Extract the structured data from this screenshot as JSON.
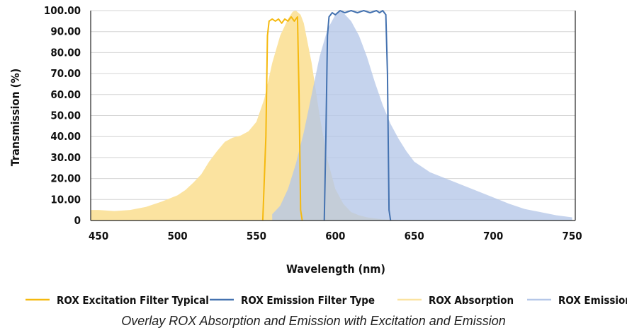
{
  "chart_data": {
    "type": "area",
    "title": "",
    "caption": "Overlay ROX Absorption and Emission with Excitation and Emission",
    "xlabel": "Wavelength (nm)",
    "ylabel": "Transmission (%)",
    "xlim": [
      445,
      752
    ],
    "ylim": [
      0,
      100
    ],
    "x_ticks": [
      450,
      500,
      550,
      600,
      650,
      700,
      750
    ],
    "x_tick_labels": [
      "450",
      "500",
      "550",
      "600",
      "650",
      "700",
      "750"
    ],
    "y_ticks": [
      0,
      10,
      20,
      30,
      40,
      50,
      60,
      70,
      80,
      90,
      100
    ],
    "y_tick_labels": [
      "0",
      "10.00",
      "20.00",
      "30.00",
      "40.00",
      "50.00",
      "60.00",
      "70.00",
      "80.00",
      "90.00",
      "100.00"
    ],
    "grid": "horizontal",
    "legend_position": "bottom",
    "series": [
      {
        "name": "ROX Absorption",
        "kind": "area",
        "color": "#fbe3a0",
        "x": [
          445,
          450,
          460,
          470,
          480,
          490,
          500,
          505,
          510,
          515,
          520,
          525,
          530,
          535,
          540,
          545,
          550,
          555,
          560,
          565,
          570,
          573,
          575,
          578,
          580,
          585,
          590,
          595,
          600,
          605,
          610,
          615,
          620,
          630,
          640,
          650
        ],
        "y": [
          5,
          5,
          4.5,
          5,
          6.5,
          9,
          12,
          14.5,
          18,
          22,
          28,
          33,
          37.5,
          39.5,
          40.5,
          42.5,
          47,
          58,
          75,
          88,
          96,
          99.5,
          100,
          98,
          94,
          75,
          50,
          29,
          15,
          8,
          4,
          2.5,
          1.5,
          0.5,
          0.2,
          0
        ]
      },
      {
        "name": "ROX Emission",
        "kind": "area",
        "color": "#b5c7e8",
        "x": [
          560,
          565,
          570,
          575,
          580,
          585,
          590,
          595,
          600,
          603,
          605,
          610,
          615,
          620,
          625,
          630,
          635,
          640,
          645,
          650,
          660,
          670,
          680,
          690,
          700,
          710,
          720,
          730,
          740,
          750
        ],
        "y": [
          3,
          7,
          15,
          27,
          42,
          60,
          78,
          91,
          98,
          100,
          99,
          95,
          88,
          78,
          66,
          55,
          46,
          39,
          33,
          28,
          23,
          20,
          17,
          14,
          11,
          8,
          5.5,
          4,
          2.5,
          1.5
        ]
      },
      {
        "name": "ROX Excitation Filter Typical",
        "kind": "line",
        "color": "#f5b90f",
        "x": [
          554,
          556,
          557,
          558,
          560,
          562,
          564,
          566,
          568,
          570,
          572,
          574,
          576,
          577,
          578,
          579
        ],
        "y": [
          0,
          40,
          88,
          95,
          96,
          95,
          96,
          94,
          96,
          95,
          97,
          95,
          97,
          60,
          5,
          0
        ]
      },
      {
        "name": "ROX Emission Filter Type",
        "kind": "line",
        "color": "#4472b0",
        "x": [
          593,
          594,
          595,
          596,
          598,
          600,
          603,
          606,
          610,
          614,
          618,
          622,
          626,
          628,
          630,
          632,
          633,
          634,
          635
        ],
        "y": [
          0,
          40,
          88,
          97,
          99,
          98,
          100,
          99,
          100,
          99,
          100,
          99,
          100,
          99,
          100,
          98,
          70,
          5,
          0
        ]
      }
    ],
    "legend_order": [
      "ROX Excitation Filter Typical",
      "ROX Emission Filter Type",
      "ROX Absorption",
      "ROX Emission"
    ]
  }
}
